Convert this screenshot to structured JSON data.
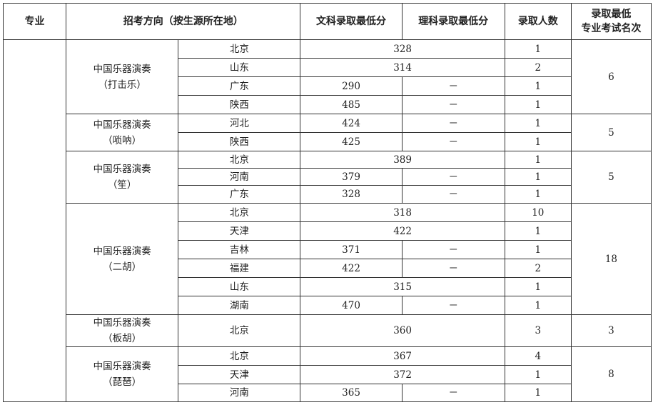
{
  "headers": {
    "major": "专业",
    "direction": "招考方向（按生源所在地）",
    "wen": "文科录取最低分",
    "li": "理科录取最低分",
    "count": "录取人数",
    "rank_line1": "录取最低",
    "rank_line2": "专业考试名次"
  },
  "major": "",
  "groups": [
    {
      "name": "中国乐器演奏",
      "sub": "（打击乐）",
      "rank": "6",
      "rows": [
        {
          "province": "北京",
          "score": "328",
          "merged": true,
          "count": "1"
        },
        {
          "province": "山东",
          "score": "314",
          "merged": true,
          "count": "2"
        },
        {
          "province": "广东",
          "wen": "290",
          "li": "－",
          "count": "1"
        },
        {
          "province": "陕西",
          "wen": "485",
          "li": "－",
          "count": "1"
        }
      ]
    },
    {
      "name": "中国乐器演奏",
      "sub": "（唢呐）",
      "rank": "5",
      "rows": [
        {
          "province": "河北",
          "wen": "424",
          "li": "－",
          "count": "1"
        },
        {
          "province": "陕西",
          "wen": "425",
          "li": "－",
          "count": "1"
        }
      ]
    },
    {
      "name": "中国乐器演奏",
      "sub": "（笙）",
      "rank": "5",
      "rows": [
        {
          "province": "北京",
          "score": "389",
          "merged": true,
          "count": "1"
        },
        {
          "province": "河南",
          "wen": "379",
          "li": "－",
          "count": "1"
        },
        {
          "province": "广东",
          "wen": "328",
          "li": "－",
          "count": "1"
        }
      ]
    },
    {
      "name": "中国乐器演奏",
      "sub": "（二胡）",
      "rank": "18",
      "rows": [
        {
          "province": "北京",
          "score": "318",
          "merged": true,
          "count": "10"
        },
        {
          "province": "天津",
          "score": "422",
          "merged": true,
          "count": "1"
        },
        {
          "province": "吉林",
          "wen": "371",
          "li": "－",
          "count": "1"
        },
        {
          "province": "福建",
          "wen": "422",
          "li": "－",
          "count": "2"
        },
        {
          "province": "山东",
          "score": "315",
          "merged": true,
          "count": "1"
        },
        {
          "province": "湖南",
          "wen": "470",
          "li": "－",
          "count": "1"
        }
      ]
    },
    {
      "name": "中国乐器演奏",
      "sub": "（板胡）",
      "rank": "3",
      "rows": [
        {
          "province": "北京",
          "score": "360",
          "merged": true,
          "count": "3"
        }
      ]
    },
    {
      "name": "中国乐器演奏",
      "sub": "（琵琶）",
      "rank": "8",
      "rows": [
        {
          "province": "北京",
          "score": "367",
          "merged": true,
          "count": "4"
        },
        {
          "province": "天津",
          "score": "372",
          "merged": true,
          "count": "1"
        },
        {
          "province": "河南",
          "wen": "365",
          "li": "－",
          "count": "1"
        }
      ]
    }
  ]
}
